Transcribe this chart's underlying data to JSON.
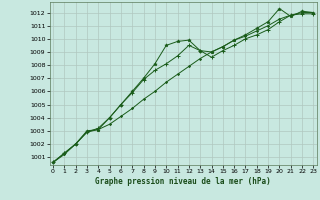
{
  "title": "Graphe pression niveau de la mer (hPa)",
  "bg_color": "#c8e8e0",
  "grid_color": "#b0c8c0",
  "line_color": "#1a5c1a",
  "marker_color": "#1a5c1a",
  "x_ticks": [
    0,
    1,
    2,
    3,
    4,
    5,
    6,
    7,
    8,
    9,
    10,
    11,
    12,
    13,
    14,
    15,
    16,
    17,
    18,
    19,
    20,
    21,
    22,
    23
  ],
  "xlim": [
    -0.3,
    23.3
  ],
  "ylim": [
    1000.4,
    1012.8
  ],
  "yticks": [
    1001,
    1002,
    1003,
    1004,
    1005,
    1006,
    1007,
    1008,
    1009,
    1010,
    1011,
    1012
  ],
  "series1_x": [
    0,
    1,
    2,
    3,
    4,
    5,
    6,
    7,
    8,
    9,
    10,
    11,
    12,
    13,
    14,
    15,
    16,
    17,
    18,
    19,
    20,
    21,
    22,
    23
  ],
  "series1_y": [
    1000.6,
    1001.3,
    1002.0,
    1003.0,
    1003.1,
    1004.0,
    1005.0,
    1006.0,
    1007.0,
    1008.1,
    1009.5,
    1009.8,
    1009.9,
    1009.1,
    1009.0,
    1009.4,
    1009.9,
    1010.3,
    1010.8,
    1011.3,
    1012.3,
    1011.7,
    1012.1,
    1012.0
  ],
  "series2_x": [
    0,
    1,
    2,
    3,
    4,
    5,
    6,
    7,
    8,
    9,
    10,
    11,
    12,
    13,
    14,
    15,
    16,
    17,
    18,
    19,
    20,
    21,
    22,
    23
  ],
  "series2_y": [
    1000.6,
    1001.3,
    1002.0,
    1002.9,
    1003.2,
    1004.0,
    1005.0,
    1005.9,
    1006.9,
    1007.6,
    1008.1,
    1008.7,
    1009.5,
    1009.1,
    1008.6,
    1009.1,
    1009.5,
    1010.0,
    1010.3,
    1010.7,
    1011.3,
    1011.8,
    1011.9,
    1011.9
  ],
  "series3_x": [
    0,
    1,
    2,
    3,
    4,
    5,
    6,
    7,
    8,
    9,
    10,
    11,
    12,
    13,
    14,
    15,
    16,
    17,
    18,
    19,
    20,
    21,
    22,
    23
  ],
  "series3_y": [
    1000.6,
    1001.2,
    1002.0,
    1002.9,
    1003.1,
    1003.5,
    1004.1,
    1004.7,
    1005.4,
    1006.0,
    1006.7,
    1007.3,
    1007.9,
    1008.5,
    1009.0,
    1009.4,
    1009.9,
    1010.2,
    1010.6,
    1011.0,
    1011.5,
    1011.8,
    1012.0,
    1012.0
  ]
}
